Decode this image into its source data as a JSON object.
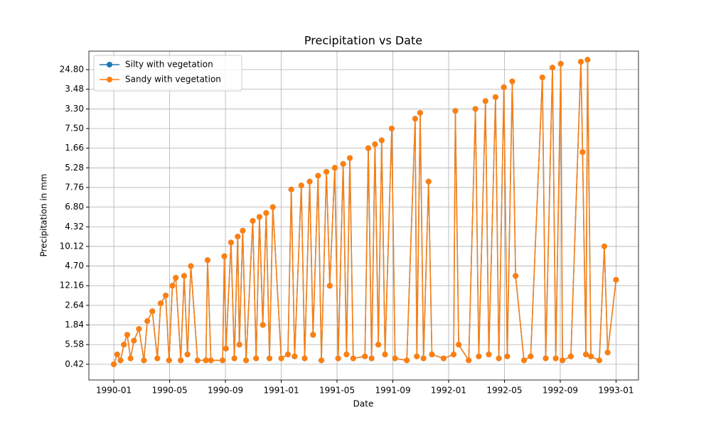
{
  "chart_data": {
    "type": "line",
    "title": "Precipitation vs Date",
    "x_label": "Date",
    "y_label": "Precipitation in mm",
    "xlim": [
      1989.851,
      1993.134
    ],
    "xticks": [
      {
        "value": 1990.0,
        "label": "1990-01"
      },
      {
        "value": 1990.3333,
        "label": "1990-05"
      },
      {
        "value": 1990.6667,
        "label": "1990-09"
      },
      {
        "value": 1991.0,
        "label": "1991-01"
      },
      {
        "value": 1991.3333,
        "label": "1991-05"
      },
      {
        "value": 1991.6667,
        "label": "1991-09"
      },
      {
        "value": 1992.0,
        "label": "1992-01"
      },
      {
        "value": 1992.3333,
        "label": "1992-05"
      },
      {
        "value": 1992.6667,
        "label": "1992-09"
      },
      {
        "value": 1993.0,
        "label": "1993-01"
      }
    ],
    "ylim": [
      -0.8,
      15.94
    ],
    "yticks": [
      {
        "value": 0,
        "label": "0.42"
      },
      {
        "value": 1,
        "label": "5.58"
      },
      {
        "value": 2,
        "label": "1.84"
      },
      {
        "value": 3,
        "label": "2.64"
      },
      {
        "value": 4,
        "label": "12.16"
      },
      {
        "value": 5,
        "label": "4.70"
      },
      {
        "value": 6,
        "label": "10.12"
      },
      {
        "value": 7,
        "label": "4.32"
      },
      {
        "value": 8,
        "label": "6.80"
      },
      {
        "value": 9,
        "label": "7.76"
      },
      {
        "value": 10,
        "label": "5.28"
      },
      {
        "value": 11,
        "label": "1.66"
      },
      {
        "value": 12,
        "label": "7.50"
      },
      {
        "value": 13,
        "label": "3.30"
      },
      {
        "value": 14,
        "label": "3.48"
      },
      {
        "value": 15,
        "label": "24.80"
      }
    ],
    "grid": true,
    "legend": "upper left",
    "x": [
      1990.0,
      1990.02,
      1990.04,
      1990.06,
      1990.08,
      1990.1,
      1990.12,
      1990.15,
      1990.18,
      1990.2,
      1990.23,
      1990.26,
      1990.28,
      1990.31,
      1990.33,
      1990.35,
      1990.37,
      1990.4,
      1990.42,
      1990.44,
      1990.46,
      1990.5,
      1990.55,
      1990.56,
      1990.58,
      1990.65,
      1990.66,
      1990.67,
      1990.7,
      1990.72,
      1990.74,
      1990.75,
      1990.77,
      1990.79,
      1990.83,
      1990.85,
      1990.87,
      1990.89,
      1990.91,
      1990.93,
      1990.95,
      1991.0,
      1991.04,
      1991.06,
      1991.08,
      1991.12,
      1991.14,
      1991.17,
      1991.19,
      1991.22,
      1991.24,
      1991.27,
      1991.29,
      1991.32,
      1991.34,
      1991.37,
      1991.39,
      1991.41,
      1991.43,
      1991.5,
      1991.52,
      1991.54,
      1991.56,
      1991.58,
      1991.6,
      1991.62,
      1991.66,
      1991.68,
      1991.75,
      1991.8,
      1991.81,
      1991.83,
      1991.85,
      1991.88,
      1991.9,
      1991.97,
      1992.03,
      1992.04,
      1992.06,
      1992.12,
      1992.16,
      1992.18,
      1992.22,
      1992.24,
      1992.28,
      1992.3,
      1992.33,
      1992.35,
      1992.38,
      1992.4,
      1992.45,
      1992.49,
      1992.56,
      1992.58,
      1992.62,
      1992.64,
      1992.67,
      1992.68,
      1992.73,
      1992.79,
      1992.8,
      1992.82,
      1992.83,
      1992.85,
      1992.9,
      1992.93,
      1992.95,
      1993.0
    ],
    "series": [
      {
        "name": "Silty with vegetation",
        "color": "#1f77b4",
        "values": [
          0,
          0.5,
          0.2,
          1,
          1.5,
          0.3,
          1.2,
          1.8,
          0.2,
          2.2,
          2.7,
          0.3,
          3.1,
          3.5,
          0.2,
          4,
          4.4,
          0.2,
          4.5,
          0.5,
          5,
          0.2,
          0.2,
          5.3,
          0.2,
          0.2,
          5.5,
          0.8,
          6.2,
          0.3,
          6.5,
          1.0,
          6.8,
          0.2,
          7.3,
          0.3,
          7.5,
          2,
          7.7,
          0.3,
          8.0,
          0.3,
          0.5,
          8.9,
          0.4,
          9.1,
          0.3,
          9.3,
          1.5,
          9.6,
          0.2,
          9.8,
          4,
          10.0,
          0.3,
          10.2,
          0.5,
          10.5,
          0.3,
          0.4,
          11.0,
          0.3,
          11.2,
          1.0,
          11.4,
          0.5,
          12.0,
          0.3,
          0.2,
          12.5,
          0.4,
          12.8,
          0.3,
          9.3,
          0.5,
          0.3,
          0.5,
          12.9,
          1,
          0.2,
          13.0,
          0.4,
          13.4,
          0.5,
          13.6,
          0.3,
          14.1,
          0.4,
          14.4,
          4.5,
          0.2,
          0.4,
          14.6,
          0.3,
          15.1,
          0.3,
          15.3,
          0.2,
          0.4,
          15.4,
          10.8,
          0.5,
          15.5,
          0.4,
          0.2,
          6.0,
          0.6,
          4.3
        ]
      },
      {
        "name": "Sandy with vegetation",
        "color": "#ff7f0e",
        "values": [
          0,
          0.5,
          0.2,
          1,
          1.5,
          0.3,
          1.2,
          1.8,
          0.2,
          2.2,
          2.7,
          0.3,
          3.1,
          3.5,
          0.2,
          4,
          4.4,
          0.2,
          4.5,
          0.5,
          5,
          0.2,
          0.2,
          5.3,
          0.2,
          0.2,
          5.5,
          0.8,
          6.2,
          0.3,
          6.5,
          1.0,
          6.8,
          0.2,
          7.3,
          0.3,
          7.5,
          2,
          7.7,
          0.3,
          8.0,
          0.3,
          0.5,
          8.9,
          0.4,
          9.1,
          0.3,
          9.3,
          1.5,
          9.6,
          0.2,
          9.8,
          4,
          10.0,
          0.3,
          10.2,
          0.5,
          10.5,
          0.3,
          0.4,
          11.0,
          0.3,
          11.2,
          1.0,
          11.4,
          0.5,
          12.0,
          0.3,
          0.2,
          12.5,
          0.4,
          12.8,
          0.3,
          9.3,
          0.5,
          0.3,
          0.5,
          12.9,
          1,
          0.2,
          13.0,
          0.4,
          13.4,
          0.5,
          13.6,
          0.3,
          14.1,
          0.4,
          14.4,
          4.5,
          0.2,
          0.4,
          14.6,
          0.3,
          15.1,
          0.3,
          15.3,
          0.2,
          0.4,
          15.4,
          10.8,
          0.5,
          15.5,
          0.4,
          0.2,
          6.0,
          0.6,
          4.3
        ]
      }
    ]
  }
}
